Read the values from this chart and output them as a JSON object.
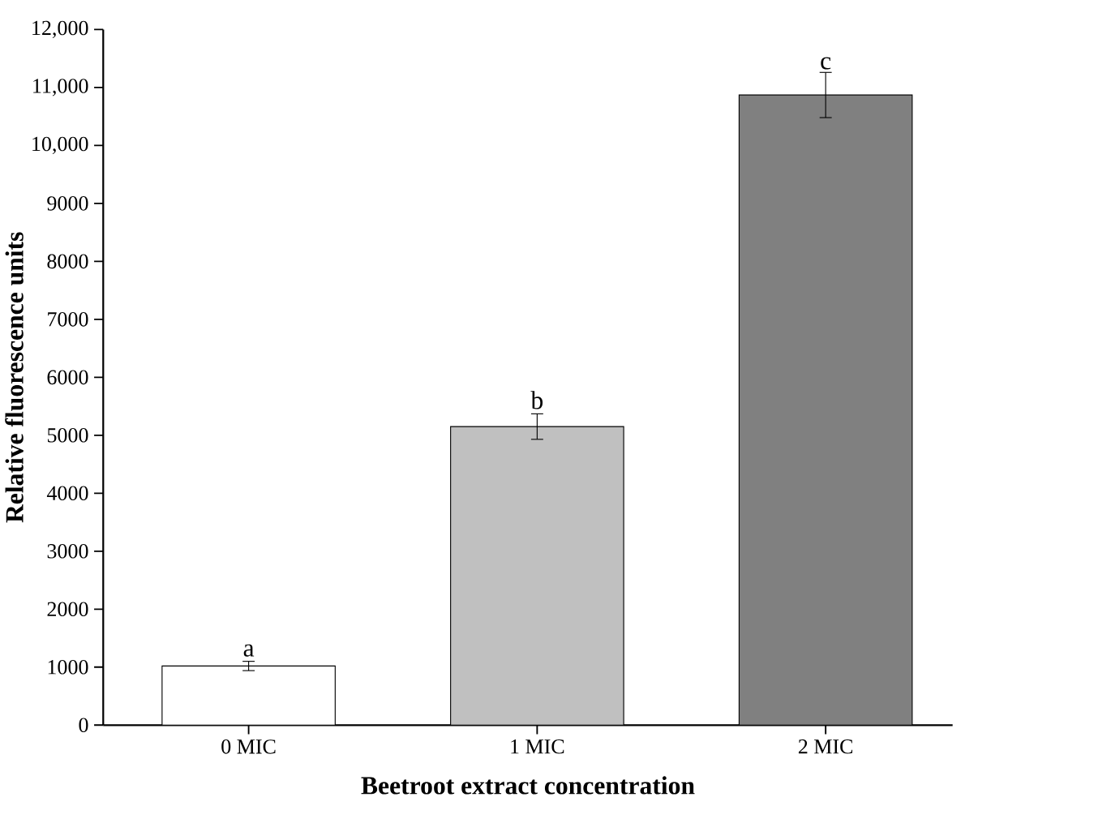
{
  "chart_data": {
    "type": "bar",
    "xlabel": "Beetroot extract concentration",
    "ylabel": "Relative fluorescence units",
    "categories": [
      "0 MIC",
      "1 MIC",
      "2 MIC"
    ],
    "values": [
      1020,
      5150,
      10870
    ],
    "errors": [
      80,
      220,
      390
    ],
    "colors": [
      "#ffffff",
      "#c0c0c0",
      "#808080"
    ],
    "ylim": [
      0,
      12000
    ],
    "yticks": [
      0,
      1000,
      2000,
      3000,
      4000,
      5000,
      6000,
      7000,
      8000,
      9000,
      {
        "value": 10000,
        "label": "10,000"
      },
      {
        "value": 11000,
        "label": "11,000"
      },
      {
        "value": 12000,
        "label": "12,000"
      }
    ],
    "annotations": [
      {
        "text": "a",
        "x": "0 MIC",
        "y": 1150
      },
      {
        "text": "b",
        "x": "1 MIC",
        "y": 5420
      },
      {
        "text": "c",
        "x": "2 MIC",
        "y": 11280
      }
    ]
  }
}
